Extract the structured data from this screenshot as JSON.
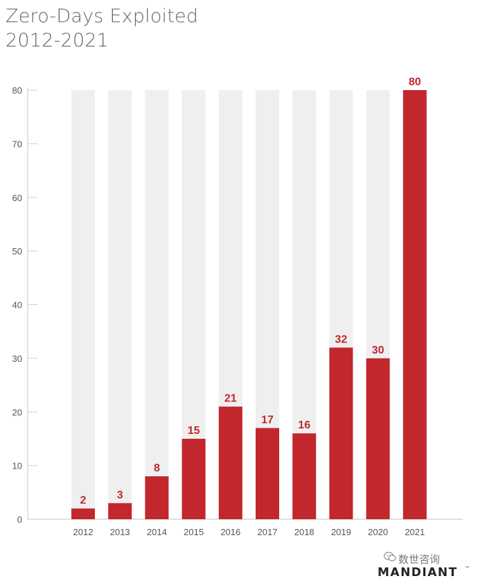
{
  "header": {
    "title_line1": "Zero-Days Exploited",
    "title_line2": "2012-2021"
  },
  "watermark": {
    "text": "数世咨询",
    "icon": "wechat-icon"
  },
  "logo": {
    "text": "MANDIANT",
    "symbol": "™"
  },
  "colors": {
    "bar": "#c1272d",
    "track": "#efefef",
    "label": "#c1272d",
    "axis": "#cfcfcf",
    "tick_text": "#555555",
    "title": "#666666"
  },
  "chart_data": {
    "type": "bar",
    "categories": [
      "2012",
      "2013",
      "2014",
      "2015",
      "2016",
      "2017",
      "2018",
      "2019",
      "2020",
      "2021"
    ],
    "values": [
      2,
      3,
      8,
      15,
      21,
      17,
      16,
      32,
      30,
      80
    ],
    "ylim": [
      0,
      80
    ],
    "yticks": [
      0,
      10,
      20,
      30,
      40,
      50,
      60,
      70,
      80
    ],
    "data_labels": true,
    "background_tracks": true,
    "grid": false,
    "legend": "none"
  }
}
